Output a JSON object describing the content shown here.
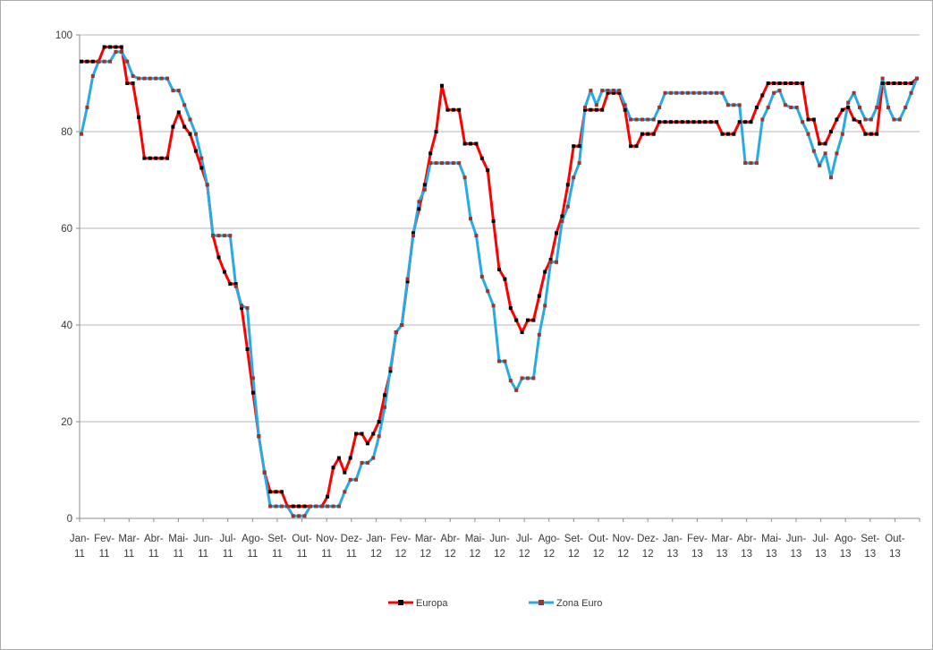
{
  "window": {
    "background": "#ffffff",
    "border_color": "#ababab"
  },
  "chart_data": {
    "type": "line",
    "title": "",
    "xlabel": "",
    "ylabel": "",
    "grid": true,
    "legend_position": "bottom",
    "axis_color": "#8c8c8c",
    "grid_color": "#b7b7b7",
    "text_color": "#383838",
    "x_axis": {
      "unit": "weeks",
      "points_total": 147,
      "month_labels": [
        [
          "Jan-",
          "11"
        ],
        [
          "Fev-",
          "11"
        ],
        [
          "Mar-",
          "11"
        ],
        [
          "Abr-",
          "11"
        ],
        [
          "Mai-",
          "11"
        ],
        [
          "Jun-",
          "11"
        ],
        [
          "Jul-",
          "11"
        ],
        [
          "Ago-",
          "11"
        ],
        [
          "Set-",
          "11"
        ],
        [
          "Out-",
          "11"
        ],
        [
          "Nov-",
          "11"
        ],
        [
          "Dez-",
          "11"
        ],
        [
          "Jan-",
          "12"
        ],
        [
          "Fev-",
          "12"
        ],
        [
          "Mar-",
          "12"
        ],
        [
          "Abr-",
          "12"
        ],
        [
          "Mai-",
          "12"
        ],
        [
          "Jun-",
          "12"
        ],
        [
          "Jul-",
          "12"
        ],
        [
          "Ago-",
          "12"
        ],
        [
          "Set-",
          "12"
        ],
        [
          "Out-",
          "12"
        ],
        [
          "Nov-",
          "12"
        ],
        [
          "Dez-",
          "12"
        ],
        [
          "Jan-",
          "13"
        ],
        [
          "Fev-",
          "13"
        ],
        [
          "Mar-",
          "13"
        ],
        [
          "Abr-",
          "13"
        ],
        [
          "Mai-",
          "13"
        ],
        [
          "Jun-",
          "13"
        ],
        [
          "Jul-",
          "13"
        ],
        [
          "Ago-",
          "13"
        ],
        [
          "Set-",
          "13"
        ],
        [
          "Out-",
          "13"
        ]
      ]
    },
    "y_axis": {
      "min": 0,
      "max": 100,
      "tick_step": 20,
      "tick_labels": [
        "0",
        "20",
        "40",
        "60",
        "80",
        "100"
      ]
    },
    "series": [
      {
        "name": "Europa",
        "color": "#ff0000",
        "marker_color": "#000000",
        "values": [
          94.5,
          94.5,
          94.5,
          94.5,
          97.5,
          97.5,
          97.5,
          97.5,
          90,
          90,
          83,
          74.5,
          74.5,
          74.5,
          74.5,
          74.5,
          81,
          84,
          81,
          79.5,
          76,
          72.5,
          69,
          58.5,
          54,
          51,
          48.5,
          48.5,
          43.5,
          35,
          26,
          17,
          9.5,
          5.5,
          5.5,
          5.5,
          2.5,
          2.5,
          2.5,
          2.5,
          2.5,
          2.5,
          2.5,
          4.5,
          10.5,
          12.5,
          9.5,
          12.5,
          17.5,
          17.5,
          15.5,
          17.5,
          20,
          25.5,
          30.5,
          38.5,
          40,
          49,
          59,
          64,
          69,
          75.5,
          80,
          89.5,
          84.5,
          84.5,
          84.5,
          77.5,
          77.5,
          77.5,
          74.5,
          72,
          61.5,
          51.5,
          49.5,
          43.5,
          41,
          38.5,
          41,
          41,
          46,
          51,
          53.5,
          59,
          62.5,
          69,
          77,
          77,
          84.5,
          84.5,
          84.5,
          84.5,
          88,
          88,
          88,
          84.5,
          77,
          77,
          79.5,
          79.5,
          79.5,
          82,
          82,
          82,
          82,
          82,
          82,
          82,
          82,
          82,
          82,
          82,
          79.5,
          79.5,
          79.5,
          82,
          82,
          82,
          85,
          87.5,
          90,
          90,
          90,
          90,
          90,
          90,
          90,
          82.5,
          82.5,
          77.5,
          77.5,
          80,
          82.5,
          84.5,
          85,
          82.5,
          82,
          79.5,
          79.5,
          79.5,
          90,
          90,
          90,
          90,
          90,
          90,
          91
        ]
      },
      {
        "name": "Zona Euro",
        "color": "#29abe2",
        "marker_color": "#953735",
        "values": [
          79.5,
          85,
          91.5,
          94.5,
          94.5,
          94.5,
          96.5,
          96.5,
          94.5,
          91.5,
          91,
          91,
          91,
          91,
          91,
          91,
          88.5,
          88.5,
          85.5,
          82.5,
          79.5,
          74.5,
          69,
          58.5,
          58.5,
          58.5,
          58.5,
          48,
          44,
          43.5,
          29,
          17,
          9.5,
          2.5,
          2.5,
          2.5,
          2.5,
          0.5,
          0.5,
          0.5,
          2.5,
          2.5,
          2.5,
          2.5,
          2.5,
          2.5,
          5.5,
          8,
          8,
          11.5,
          11.5,
          12.5,
          17,
          23,
          31,
          38.5,
          40,
          49.5,
          58.5,
          65.5,
          68,
          73.5,
          73.5,
          73.5,
          73.5,
          73.5,
          73.5,
          70.5,
          62,
          58.5,
          50,
          47,
          44,
          32.5,
          32.5,
          28.5,
          26.5,
          29,
          29,
          29,
          38,
          44,
          53,
          53,
          61.5,
          64.5,
          70.5,
          73.5,
          85,
          88.5,
          85.5,
          88.5,
          88.5,
          88.5,
          88.5,
          85.5,
          82.5,
          82.5,
          82.5,
          82.5,
          82.5,
          85,
          88,
          88,
          88,
          88,
          88,
          88,
          88,
          88,
          88,
          88,
          88,
          85.5,
          85.5,
          85.5,
          73.5,
          73.5,
          73.5,
          82.5,
          85,
          88,
          88.5,
          85.5,
          85,
          85,
          82,
          79.5,
          76,
          73,
          75.5,
          70.5,
          75.5,
          79.5,
          86,
          88,
          85,
          82.5,
          82.5,
          85,
          91,
          85,
          82.5,
          82.5,
          85,
          88,
          91
        ]
      }
    ]
  }
}
